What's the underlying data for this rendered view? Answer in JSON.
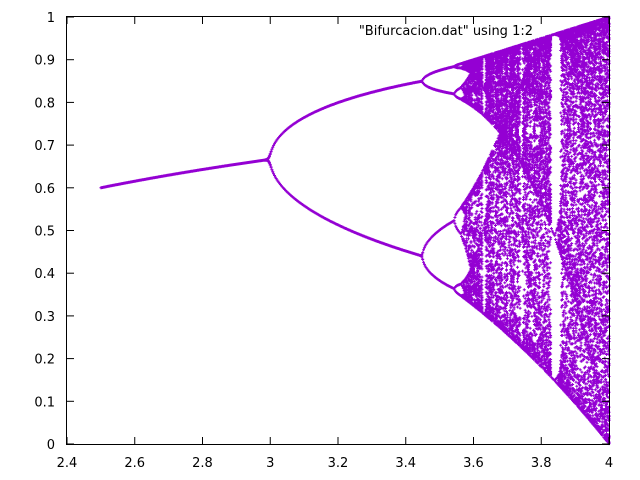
{
  "chart_data": {
    "type": "scatter",
    "title": "",
    "xlabel": "",
    "ylabel": "",
    "xlim": [
      2.4,
      4.0
    ],
    "ylim": [
      0,
      1.0
    ],
    "xticks": [
      2.4,
      2.6,
      2.8,
      3.0,
      3.2,
      3.4,
      3.6,
      3.8,
      4.0
    ],
    "yticks": [
      0,
      0.1,
      0.2,
      0.3,
      0.4,
      0.5,
      0.6,
      0.7,
      0.8,
      0.9,
      1.0
    ],
    "xtick_labels": [
      "2.4",
      "2.6",
      "2.8",
      "3",
      "3.2",
      "3.4",
      "3.6",
      "3.8",
      "4"
    ],
    "ytick_labels": [
      "0",
      "0.1",
      "0.2",
      "0.3",
      "0.4",
      "0.5",
      "0.6",
      "0.7",
      "0.8",
      "0.9",
      "1"
    ],
    "grid": false,
    "legend_position": "top-right",
    "series": [
      {
        "name": "\"Bifurcacion.dat\" using 1:2",
        "color": "#9400d3",
        "map": "logistic",
        "equation": "x(n+1) = r * x(n) * (1 - x(n))",
        "r_range": [
          2.5,
          4.0
        ],
        "r_step": 0.0025,
        "points_per_r": 100
      }
    ]
  }
}
